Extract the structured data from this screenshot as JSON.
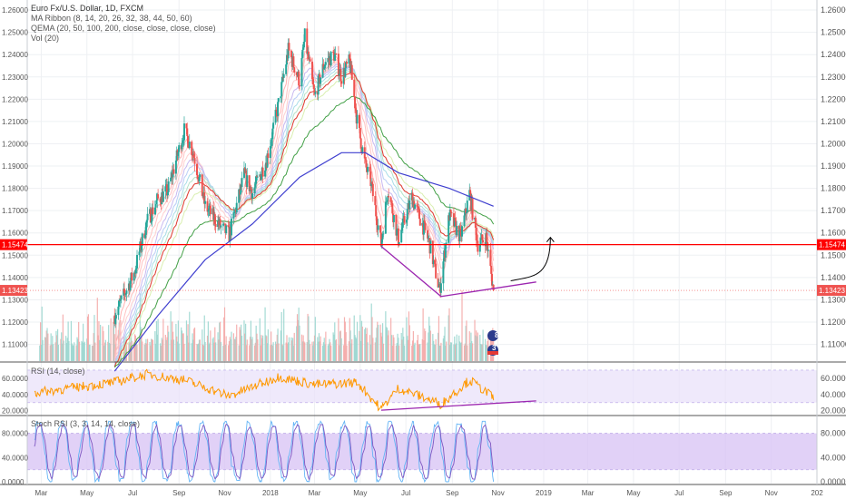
{
  "legend": {
    "symbol": "Euro Fx/U.S. Dollar, 1D, FXCM",
    "ribbon": "MA Ribbon (8, 14, 20, 26, 32, 38, 44, 50, 60)",
    "qema": "QEMA (20, 50, 100, 200, close, close, close, close)",
    "vol": "Vol (20)",
    "rsi": "RSI (14, close)",
    "stoch": "Stoch RSI (3, 3, 14, 14, close)"
  },
  "price_labels": {
    "resistance": "1.15474",
    "last": "1.13423"
  },
  "badges": {
    "events_a": "8",
    "events_b": "3"
  },
  "colors": {
    "bull": "#26a69a",
    "bear": "#ef5350",
    "resistance": "#ff0000",
    "trend": "#9c27b0",
    "rsi_line": "#ff9800",
    "rsi_band": "#e9e2fa",
    "stoch_band": "#d9c6f5",
    "stoch_line": "#7e57c2",
    "ema200": "#3f3fcf"
  },
  "chart_data": {
    "type": "candlestick",
    "title": "Euro Fx/U.S. Dollar, 1D, FXCM",
    "x_tick_labels": [
      "Mar",
      "May",
      "Jul",
      "Sep",
      "Nov",
      "2018",
      "Mar",
      "May",
      "Jul",
      "Sep",
      "Nov",
      "2019",
      "Mar",
      "May",
      "Jul",
      "Sep",
      "Nov",
      "202"
    ],
    "price_axis": {
      "ylim": [
        1.1025,
        1.2645
      ],
      "tick_labels": [
        "1.26000",
        "1.25000",
        "1.24000",
        "1.23000",
        "1.22000",
        "1.21000",
        "1.20000",
        "1.19000",
        "1.18000",
        "1.17000",
        "1.16000",
        "1.15000",
        "1.14000",
        "1.13000",
        "1.12000",
        "1.11000"
      ]
    },
    "rsi_axis": {
      "ylim": [
        15,
        78
      ],
      "tick_labels": [
        "60.0000",
        "40.0000",
        "20.0000"
      ],
      "band": [
        30,
        70
      ]
    },
    "stoch_axis": {
      "ylim": [
        -3,
        108
      ],
      "tick_labels": [
        "80.0000",
        "40.0000",
        "0.0000"
      ],
      "band": [
        20,
        80
      ]
    },
    "price_series": {
      "name": "EUR/USD close (approx.)",
      "x": [
        "2017-06-07",
        "2017-07-03",
        "2017-07-20",
        "2017-08-04",
        "2017-08-17",
        "2017-09-08",
        "2017-09-20",
        "2017-10-06",
        "2017-10-26",
        "2017-11-07",
        "2017-11-27",
        "2017-12-08",
        "2017-12-27",
        "2018-01-12",
        "2018-01-25",
        "2018-02-09",
        "2018-02-16",
        "2018-03-01",
        "2018-03-14",
        "2018-03-27",
        "2018-04-06",
        "2018-04-17",
        "2018-04-27",
        "2018-05-08",
        "2018-05-15",
        "2018-05-29",
        "2018-06-07",
        "2018-06-21",
        "2018-07-09",
        "2018-08-01",
        "2018-08-15",
        "2018-08-28",
        "2018-09-12",
        "2018-09-24",
        "2018-10-05",
        "2018-10-16",
        "2018-10-26"
      ],
      "y": [
        1.123,
        1.142,
        1.165,
        1.175,
        1.179,
        1.206,
        1.196,
        1.172,
        1.163,
        1.159,
        1.186,
        1.178,
        1.193,
        1.218,
        1.242,
        1.228,
        1.248,
        1.221,
        1.236,
        1.24,
        1.23,
        1.237,
        1.21,
        1.19,
        1.183,
        1.155,
        1.18,
        1.157,
        1.176,
        1.156,
        1.134,
        1.168,
        1.158,
        1.178,
        1.155,
        1.158,
        1.1342
      ]
    },
    "ema200": {
      "x": [
        "2017-06-07",
        "2017-08-04",
        "2017-10-06",
        "2017-12-08",
        "2018-02-09",
        "2018-04-06",
        "2018-05-08",
        "2018-06-21",
        "2018-08-28",
        "2018-10-26"
      ],
      "y": [
        1.098,
        1.123,
        1.148,
        1.164,
        1.185,
        1.196,
        1.196,
        1.187,
        1.18,
        1.172
      ]
    },
    "resistance_level": 1.15474,
    "trendline_price": {
      "x": [
        "2018-05-29",
        "2018-08-17",
        "2018-12-22"
      ],
      "y": [
        1.154,
        1.1315,
        1.138
      ]
    },
    "trendline_rsi": {
      "x": [
        "2018-05-29",
        "2018-12-22"
      ],
      "y": [
        20.5,
        32
      ]
    },
    "projection_arrow": {
      "from": [
        "2018-11-18",
        1.1385
      ],
      "to": [
        "2019-01-10",
        1.158
      ]
    },
    "rsi_series": {
      "x": [
        "2017-02-20",
        "2017-04-10",
        "2017-06-07",
        "2017-07-20",
        "2017-09-08",
        "2017-11-07",
        "2018-01-12",
        "2018-03-01",
        "2018-04-27",
        "2018-05-29",
        "2018-06-21",
        "2018-08-17",
        "2018-09-24",
        "2018-10-26"
      ],
      "y": [
        42,
        48,
        55,
        65,
        58,
        38,
        62,
        52,
        55,
        22,
        48,
        28,
        58,
        36
      ]
    }
  }
}
